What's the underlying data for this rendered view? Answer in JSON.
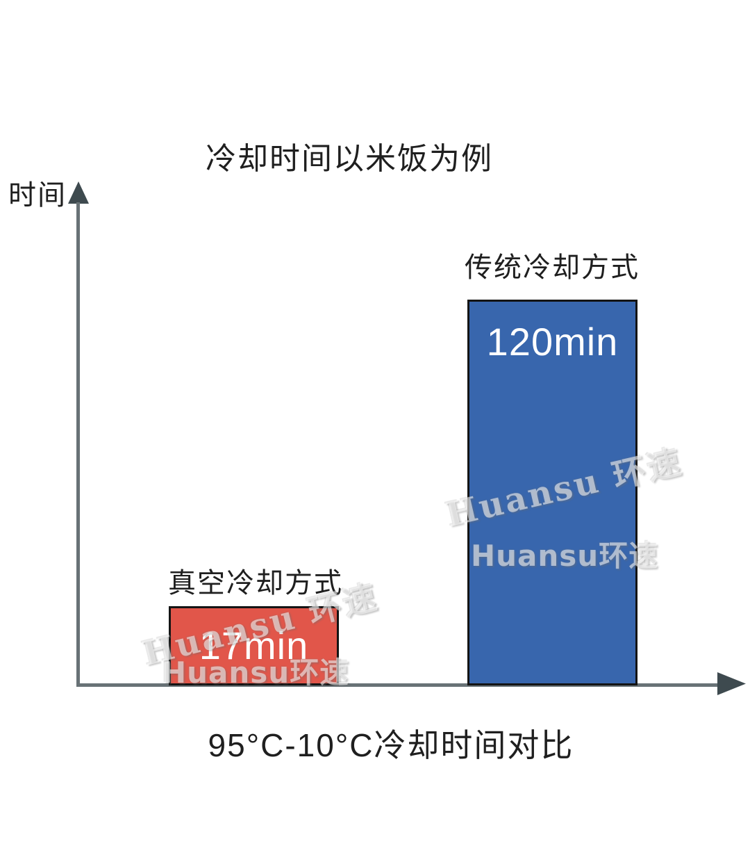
{
  "chart_data": {
    "type": "bar",
    "title": "冷却时间以米饭为例",
    "ylabel": "时间",
    "xlabel": "95°C-10°C冷却时间对比",
    "categories": [
      "真空冷却方式",
      "传统冷却方式"
    ],
    "values": [
      17,
      120
    ],
    "value_labels": [
      "17min",
      "120min"
    ],
    "unit": "min",
    "series": [
      {
        "name": "冷却时间",
        "values": [
          17,
          120
        ]
      }
    ],
    "ylim": [
      0,
      130
    ],
    "grid": false,
    "legend": false,
    "bar_colors": [
      "#e1564a",
      "#3866ad"
    ],
    "bar_border_color": "#141414",
    "axis_color": "#687276",
    "arrow_color": "#3e4a4f",
    "title_color": "#1f1f1f",
    "value_text_color": "#ffffff"
  },
  "watermark": {
    "diagonal_text": "Huansu 环速",
    "bold_text": "Huansu环速"
  }
}
